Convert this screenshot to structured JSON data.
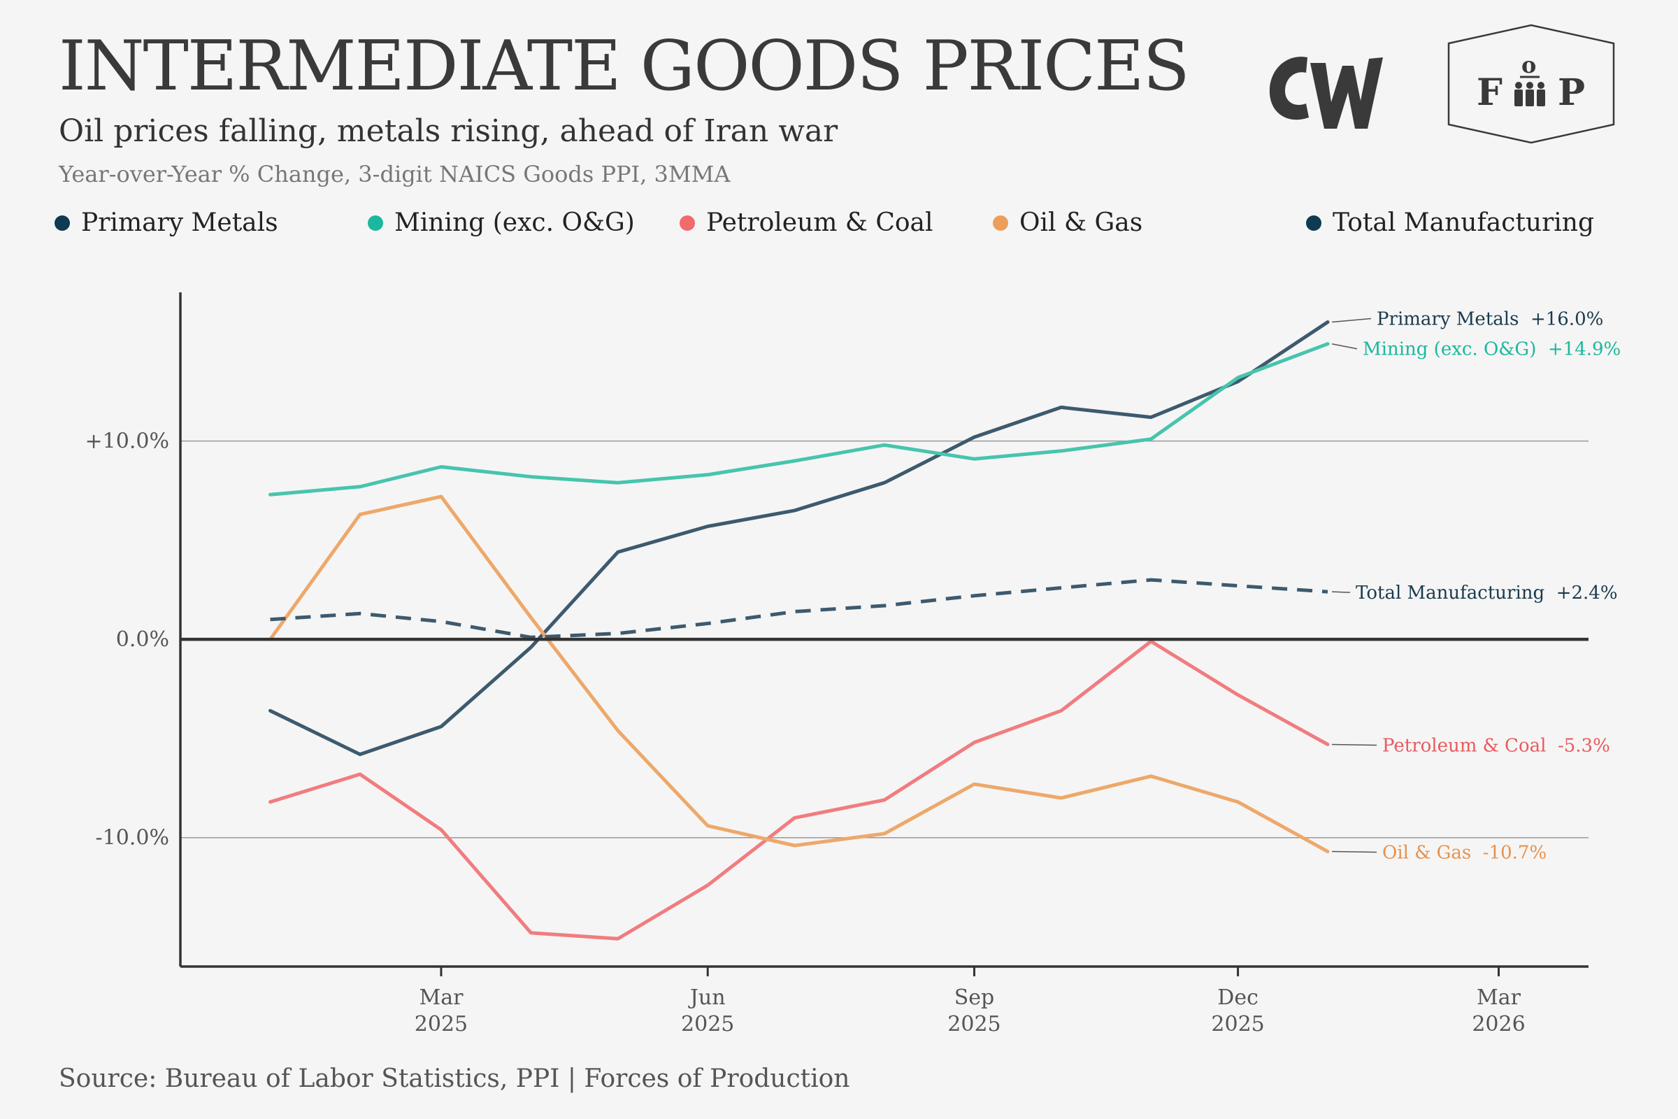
{
  "header": {
    "title": "INTERMEDIATE GOODS PRICES",
    "subtitle": "Oil prices falling, metals rising, ahead of Iran war",
    "note": "Year-over-Year % Change, 3-digit NAICS Goods PPI, 3MMA"
  },
  "logos": {
    "cw_text": "CW",
    "fop_left": "F",
    "fop_top": "o",
    "fop_right": "P"
  },
  "footer": {
    "source": "Source: Bureau of Labor Statistics, PPI | Forces of Production"
  },
  "chart_data": {
    "type": "line",
    "x": [
      "2025-01",
      "2025-02",
      "2025-03",
      "2025-04",
      "2025-05",
      "2025-06",
      "2025-07",
      "2025-08",
      "2025-09",
      "2025-10",
      "2025-11",
      "2025-12",
      "2026-01"
    ],
    "x_ticks": [
      {
        "date": "2025-03",
        "line1": "Mar",
        "line2": "2025"
      },
      {
        "date": "2025-06",
        "line1": "Jun",
        "line2": "2025"
      },
      {
        "date": "2025-09",
        "line1": "Sep",
        "line2": "2025"
      },
      {
        "date": "2025-12",
        "line1": "Dec",
        "line2": "2025"
      },
      {
        "date": "2026-03",
        "line1": "Mar",
        "line2": "2026"
      }
    ],
    "xlim": [
      "2024-12-15",
      "2026-04-15"
    ],
    "y_ticks": [
      {
        "value": 10,
        "label": "+10.0%"
      },
      {
        "value": 0,
        "label": "0.0%"
      },
      {
        "value": -10,
        "label": "-10.0%"
      }
    ],
    "ylim": [
      -16.5,
      17.5
    ],
    "grid": true,
    "legend_position": "top",
    "series": [
      {
        "name": "Primary Metals",
        "color": "#3d5a6e",
        "legend_color": "#0e3a52",
        "dashed": false,
        "values": [
          -3.6,
          -5.8,
          -4.4,
          -0.4,
          4.4,
          5.7,
          6.5,
          7.9,
          10.2,
          11.7,
          11.2,
          13.0,
          16.0
        ],
        "end_label": "Primary Metals  +16.0%",
        "end_label_color": "#1a3a4e"
      },
      {
        "name": "Mining (exc. O&G)",
        "color": "#47c4ad",
        "legend_color": "#1ab89c",
        "dashed": false,
        "values": [
          7.3,
          7.7,
          8.7,
          8.2,
          7.9,
          8.3,
          9.0,
          9.8,
          9.1,
          9.5,
          10.1,
          13.2,
          14.9
        ],
        "end_label": "Mining (exc. O&G)  +14.9%",
        "end_label_color": "#1ab89c"
      },
      {
        "name": "Petroleum & Coal",
        "color": "#f17c7f",
        "legend_color": "#f06a6e",
        "dashed": false,
        "values": [
          -8.2,
          -6.8,
          -9.6,
          -14.8,
          -15.1,
          -12.4,
          -9.0,
          -8.1,
          -5.2,
          -3.6,
          -0.1,
          -2.8,
          -5.3
        ],
        "end_label": "Petroleum & Coal  -5.3%",
        "end_label_color": "#e85a5e"
      },
      {
        "name": "Oil & Gas",
        "color": "#eda86a",
        "legend_color": "#ee9e5a",
        "dashed": false,
        "values": [
          0.0,
          6.3,
          7.2,
          1.1,
          -4.6,
          -9.4,
          -10.4,
          -9.8,
          -7.3,
          -8.0,
          -6.9,
          -8.2,
          -10.7
        ],
        "end_label": "Oil & Gas  -10.7%",
        "end_label_color": "#e8914a"
      },
      {
        "name": "Total Manufacturing",
        "color": "#3d5a6e",
        "legend_color": "#0e3a52",
        "dashed": true,
        "values": [
          1.0,
          1.3,
          0.9,
          0.1,
          0.3,
          0.8,
          1.4,
          1.7,
          2.2,
          2.6,
          3.0,
          2.7,
          2.4
        ],
        "end_label": "Total Manufacturing  +2.4%",
        "end_label_color": "#1a3a4e"
      }
    ]
  }
}
